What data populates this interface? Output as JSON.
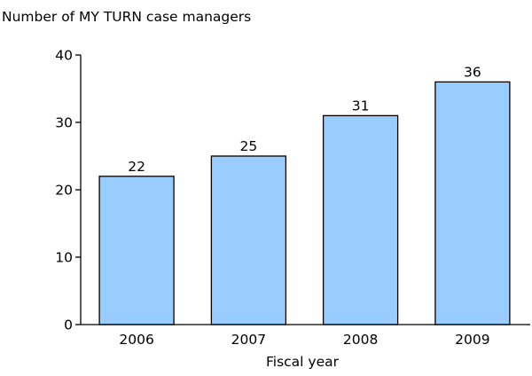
{
  "chart_data": {
    "type": "bar",
    "title": "",
    "ylabel": "Number of MY TURN case managers",
    "xlabel": "Fiscal year",
    "categories": [
      "2006",
      "2007",
      "2008",
      "2009"
    ],
    "values": [
      22,
      25,
      31,
      36
    ],
    "data_labels": [
      "22",
      "25",
      "31",
      "36"
    ],
    "ylim": [
      0,
      40
    ],
    "yticks": [
      0,
      10,
      20,
      30,
      40
    ],
    "ytick_labels": [
      "0",
      "10",
      "20",
      "30",
      "40"
    ],
    "grid": false,
    "legend": "none",
    "bar_color": "#99ccff",
    "bar_stroke": "#000000"
  }
}
